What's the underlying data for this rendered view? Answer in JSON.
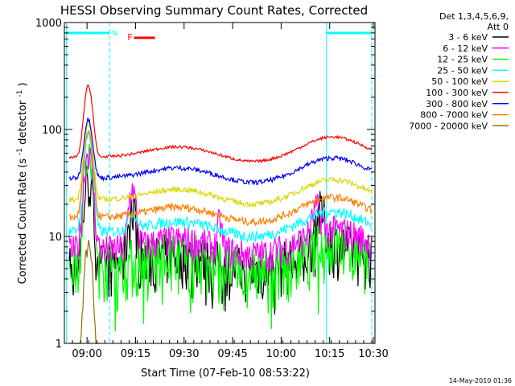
{
  "chart_data": {
    "type": "line",
    "title": "HESSI Observing Summary Count Rates, Corrected",
    "xlabel": "Start Time (07-Feb-10 08:53:22)",
    "ylabel": "Corrected Count Rate (s",
    "ylabel_sup1": "-1",
    "ylabel_mid": " detector",
    "ylabel_sup2": "-1",
    "ylabel_end": ")",
    "x_range_min": [
      0,
      96
    ],
    "y_range": [
      1,
      1000
    ],
    "y_scale": "log",
    "x_ticks": [
      "09:00",
      "09:15",
      "09:30",
      "09:45",
      "10:00",
      "10:15",
      "10:30"
    ],
    "x_tick_min": [
      7,
      22,
      37,
      52,
      67,
      82,
      97
    ],
    "y_ticks": [
      "1",
      "10",
      "100",
      "1000"
    ],
    "y_tick_vals": [
      1,
      10,
      100,
      1000
    ],
    "legend": {
      "header1": "Det 1,3,4,5,6,9,",
      "header2": "Att 0",
      "placement": "right"
    },
    "series": [
      {
        "name": "3 - 6 keV",
        "color": "#000000"
      },
      {
        "name": "6 - 12 keV",
        "color": "#ff00ff"
      },
      {
        "name": "12 - 25 keV",
        "color": "#00ff00"
      },
      {
        "name": "25 - 50 keV",
        "color": "#00ffff"
      },
      {
        "name": "50 - 100 keV",
        "color": "#d8d800"
      },
      {
        "name": "100 - 300 keV",
        "color": "#ff0000"
      },
      {
        "name": "300 - 800 keV",
        "color": "#0000ff"
      },
      {
        "name": "800 - 7000 keV",
        "color": "#ff8000"
      },
      {
        "name": "7000 - 20000 keV",
        "color": "#8b7500"
      }
    ],
    "annotations": {
      "night_label": "N",
      "flare_label": "F",
      "night_color": "#00ffff",
      "flare_color": "#ff0000"
    },
    "footer": "14-May-2010 01:36"
  }
}
